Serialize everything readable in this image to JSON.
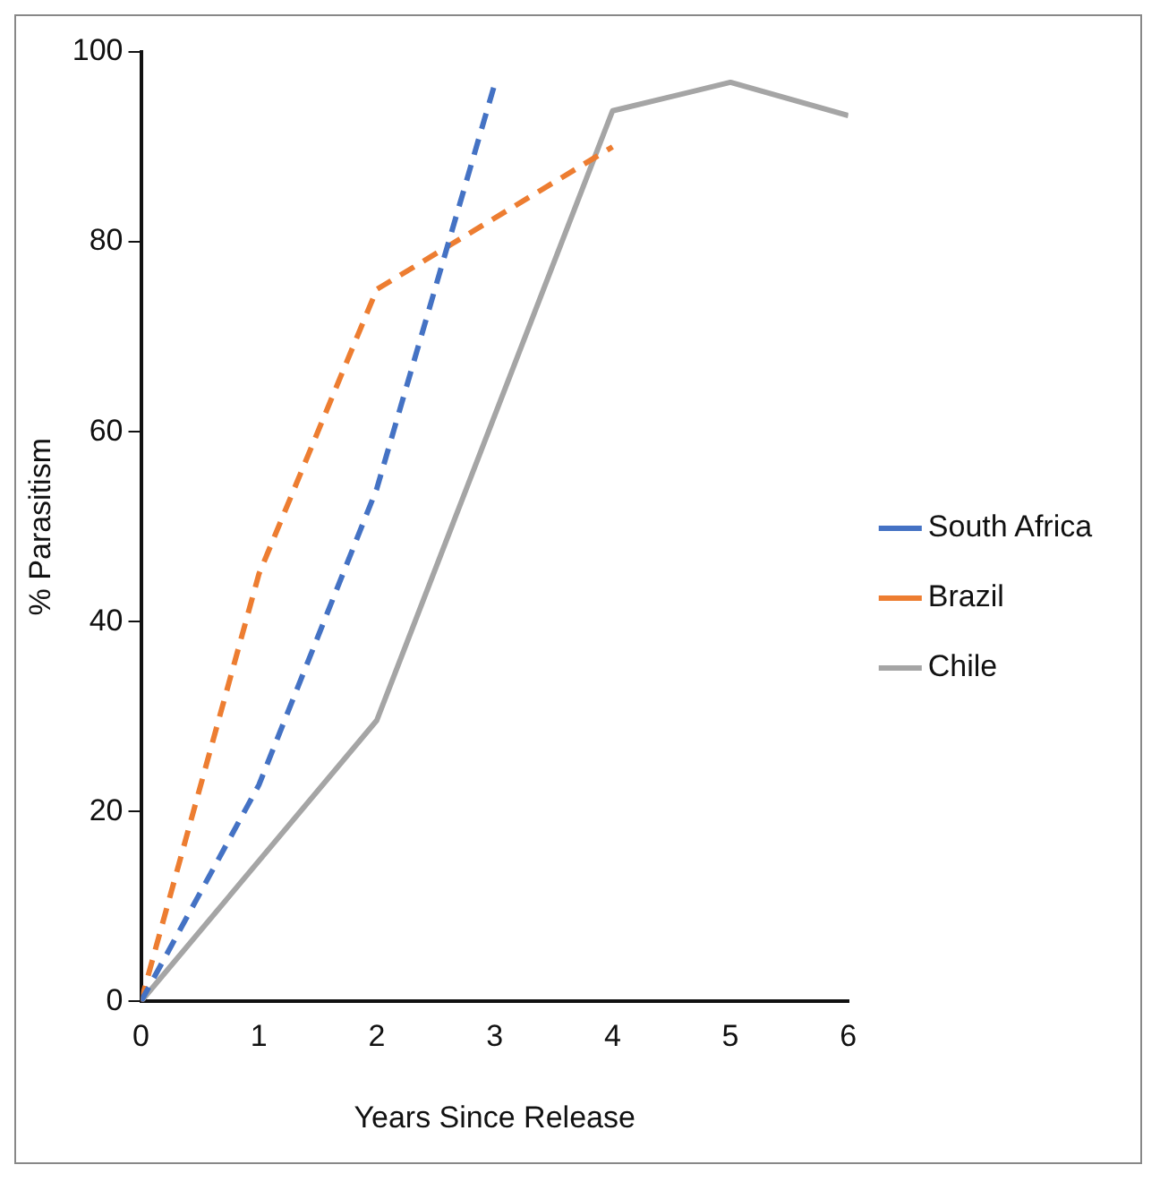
{
  "chart_data": {
    "type": "line",
    "xlabel": "Years Since Release",
    "ylabel": "% Parasitism",
    "xlim": [
      0,
      6
    ],
    "xticks": [
      0,
      1,
      2,
      3,
      4,
      5,
      6
    ],
    "ylim": [
      0,
      100
    ],
    "yticks": [
      0,
      20,
      40,
      60,
      80,
      100
    ],
    "grid": false,
    "legend": "right",
    "marker": "none",
    "series": [
      {
        "name": "South Africa",
        "color": "#4472c4",
        "line_style": "dashed",
        "x": [
          0,
          1,
          2,
          3
        ],
        "values": [
          0,
          22.8,
          54,
          96.6
        ]
      },
      {
        "name": "Brazil",
        "color": "#ed7d31",
        "line_style": "dashed",
        "x": [
          0,
          1,
          2,
          4
        ],
        "values": [
          0,
          45,
          75,
          90
        ]
      },
      {
        "name": "Chile",
        "color": "#a5a5a5",
        "line_style": "solid",
        "x": [
          0,
          2,
          4,
          5,
          6
        ],
        "values": [
          0,
          29.6,
          93.8,
          96.8,
          93.3
        ]
      }
    ]
  }
}
